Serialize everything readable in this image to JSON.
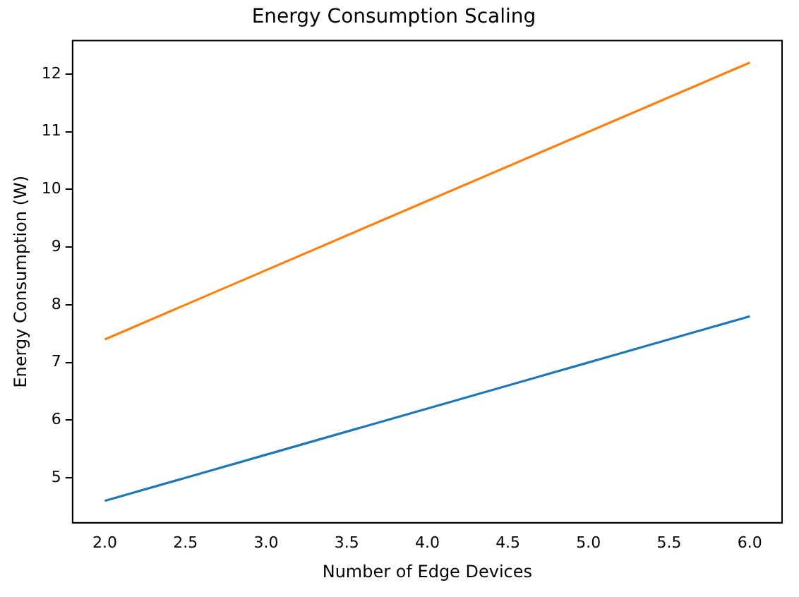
{
  "chart_data": {
    "type": "line",
    "title": "Energy Consumption Scaling",
    "xlabel": "Number of Edge Devices",
    "ylabel": "Energy Consumption (W)",
    "x": [
      2,
      3,
      4,
      5,
      6
    ],
    "series": [
      {
        "color": "#1f77b4",
        "values": [
          4.6,
          5.4,
          6.2,
          7.0,
          7.8
        ]
      },
      {
        "color": "#ff7f0e",
        "values": [
          7.4,
          8.6,
          9.8,
          11.0,
          12.2
        ]
      }
    ],
    "xlim": [
      1.8,
      6.2
    ],
    "xticks": [
      {
        "value": 2,
        "label": "2.0"
      },
      {
        "value": 2.5,
        "label": "2.5"
      },
      {
        "value": 3,
        "label": "3.0"
      },
      {
        "value": 3.5,
        "label": "3.5"
      },
      {
        "value": 4,
        "label": "4.0"
      },
      {
        "value": 4.5,
        "label": "4.5"
      },
      {
        "value": 5,
        "label": "5.0"
      },
      {
        "value": 5.5,
        "label": "5.5"
      },
      {
        "value": 6,
        "label": "6.0"
      }
    ],
    "ylim": [
      4.22,
      12.58
    ],
    "yticks": [
      5,
      6,
      7,
      8,
      9,
      10,
      11,
      12
    ],
    "grid": false,
    "legend": false,
    "marker": "none",
    "line_style": "solid"
  }
}
